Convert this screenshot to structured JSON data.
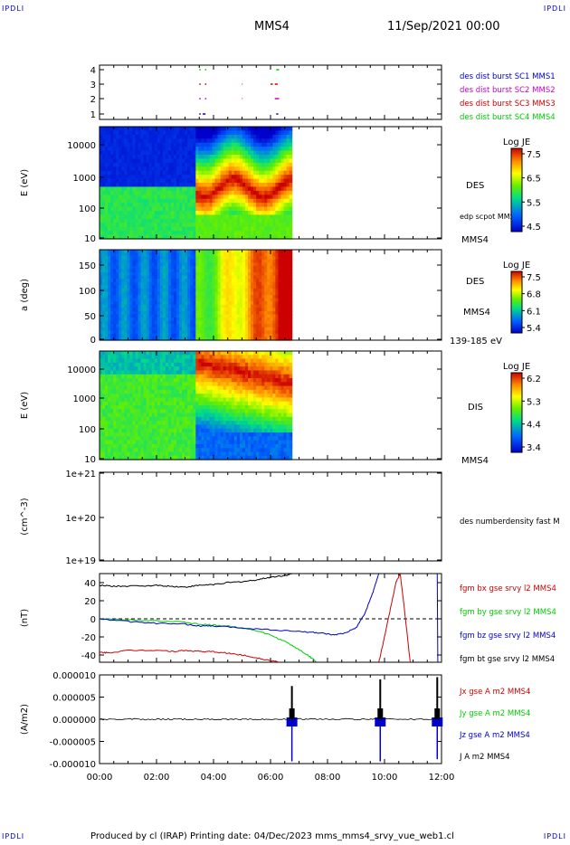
{
  "header": {
    "corner_left_top": "IPDLI",
    "corner_right_top": "IPDLI",
    "corner_left_bottom": "IPDLI",
    "corner_right_bottom": "IPDLI",
    "spacecraft": "MMS4",
    "date": "11/Sep/2021 00:00"
  },
  "footer": {
    "text": "Produced by cl (IRAP)   Printing date: 04/Dec/2023   mms_mms4_srvy_vue_web1.cl"
  },
  "x_axis": {
    "range_hours": [
      0,
      12
    ],
    "ticks": [
      {
        "h": 0,
        "label": "00:00"
      },
      {
        "h": 2,
        "label": "02:00"
      },
      {
        "h": 4,
        "label": "04:00"
      },
      {
        "h": 6,
        "label": "06:00"
      },
      {
        "h": 8,
        "label": "08:00"
      },
      {
        "h": 10,
        "label": "10:00"
      },
      {
        "h": 12,
        "label": "12:00"
      }
    ]
  },
  "colors": {
    "blue": "#0000cc",
    "magenta": "#cc00cc",
    "red": "#cc0000",
    "green": "#00cc00",
    "black": "#000000"
  },
  "chart_data": [
    {
      "id": "burst",
      "type": "scatter",
      "y_ticks": [
        "4",
        "3",
        "2",
        "1"
      ],
      "legend": [
        {
          "label": "des dist burst SC1 MMS1",
          "color": "#0000cc"
        },
        {
          "label": "des dist burst SC2 MMS2",
          "color": "#cc00cc"
        },
        {
          "label": "des dist burst SC3 MMS3",
          "color": "#cc0000"
        },
        {
          "label": "des dist burst SC4 MMS4",
          "color": "#00cc00"
        }
      ],
      "segments": [
        {
          "sc": 4,
          "color": "#00cc00",
          "t": [
            [
              3.5,
              3.55
            ],
            [
              3.7,
              3.75
            ],
            [
              6.2,
              6.3
            ]
          ]
        },
        {
          "sc": 3,
          "color": "#cc0000",
          "t": [
            [
              3.5,
              3.55
            ],
            [
              3.7,
              3.75
            ],
            [
              5.0,
              5.02
            ],
            [
              6.0,
              6.08
            ],
            [
              6.15,
              6.25
            ]
          ]
        },
        {
          "sc": 2,
          "color": "#cc00cc",
          "t": [
            [
              3.5,
              3.55
            ],
            [
              3.7,
              3.75
            ],
            [
              5.0,
              5.02
            ],
            [
              6.15,
              6.3
            ]
          ]
        },
        {
          "sc": 1,
          "color": "#0000cc",
          "t": [
            [
              3.5,
              3.55
            ],
            [
              3.62,
              3.72
            ],
            [
              6.2,
              6.27
            ]
          ]
        }
      ]
    },
    {
      "id": "des_energy",
      "type": "heatmap",
      "ylabel": "E (eV)",
      "y_ticks": [
        "10000",
        "1000",
        "100",
        "10"
      ],
      "ylim": [
        10,
        30000
      ],
      "data_end_hour": 6.75,
      "right_labels": [
        "DES",
        "edp scpot MMS4",
        "MMS4"
      ],
      "colorbar": {
        "title": "Log JE",
        "ticks": [
          "7.5",
          "6.5",
          "5.5",
          "4.5"
        ],
        "range": [
          4.5,
          7.5
        ]
      }
    },
    {
      "id": "des_pitch",
      "type": "heatmap",
      "ylabel": "a (deg)",
      "y_ticks": [
        "150",
        "100",
        "50",
        "0"
      ],
      "ylim": [
        0,
        180
      ],
      "data_end_hour": 6.75,
      "right_labels": [
        "DES",
        "MMS4",
        "139-185 eV"
      ],
      "colorbar": {
        "title": "Log JE",
        "ticks": [
          "7.5",
          "6.8",
          "6.1",
          "5.4"
        ],
        "range": [
          5.4,
          7.5
        ]
      }
    },
    {
      "id": "dis_energy",
      "type": "heatmap",
      "ylabel": "E (eV)",
      "y_ticks": [
        "10000",
        "1000",
        "100",
        "10"
      ],
      "ylim": [
        10,
        30000
      ],
      "data_end_hour": 6.75,
      "right_labels": [
        "DIS",
        "MMS4"
      ],
      "colorbar": {
        "title": "Log JE",
        "ticks": [
          "6.2",
          "5.3",
          "4.4",
          "3.4"
        ],
        "range": [
          3.4,
          6.2
        ]
      }
    },
    {
      "id": "density",
      "type": "line",
      "ylabel": "(cm^-3)",
      "y_ticks": [
        "1e+21",
        "1e+20",
        "1e+19"
      ],
      "legend": [
        {
          "label": "des numberdensity fast M",
          "color": "#000000"
        }
      ]
    },
    {
      "id": "fgm",
      "type": "line",
      "ylabel": "(nT)",
      "y_ticks": [
        "40",
        "20",
        "0",
        "-20",
        "-40"
      ],
      "ylim": [
        -48,
        50
      ],
      "legend": [
        {
          "label": "fgm bx gse srvy l2 MMS4",
          "color": "#cc0000"
        },
        {
          "label": "fgm by gse srvy l2 MMS4",
          "color": "#00cc00"
        },
        {
          "label": "fgm bz gse srvy l2 MMS4",
          "color": "#0000cc"
        },
        {
          "label": "fgm bt gse srvy l2 MMS4",
          "color": "#000000"
        }
      ],
      "series": [
        {
          "name": "fgm bt gse srvy l2 MMS4",
          "color": "#000000",
          "x": [
            0,
            0.5,
            1,
            2,
            2.5,
            3,
            3.5,
            4,
            4.5,
            5,
            5.5,
            6,
            6.5,
            6.8
          ],
          "y": [
            37,
            36,
            36,
            37,
            36,
            35,
            37,
            38,
            40,
            41,
            43,
            46,
            48,
            50
          ]
        },
        {
          "name": "fgm bx gse srvy l2 MMS4",
          "color": "#cc0000",
          "x": [
            0,
            0.3,
            1,
            2,
            2.6,
            3,
            3.5,
            4,
            4.5,
            5,
            5.5,
            6,
            6.3
          ],
          "y": [
            -37,
            -37.5,
            -35,
            -34.5,
            -36,
            -35,
            -36,
            -36.5,
            -38,
            -40,
            -43,
            -46,
            -48
          ]
        },
        {
          "name": "fgm bx gse srvy l2 MMS4 (10h)",
          "color": "#cc0000",
          "x": [
            9.8,
            10.0,
            10.2,
            10.4,
            10.55,
            10.7,
            10.9
          ],
          "y": [
            -48,
            -20,
            10,
            40,
            50,
            10,
            -48
          ]
        },
        {
          "name": "fgm by gse srvy l2 MMS4",
          "color": "#00cc00",
          "x": [
            0,
            1,
            2,
            3,
            3.5,
            4,
            4.5,
            5,
            5.5,
            6,
            6.5,
            7,
            7.3,
            7.6
          ],
          "y": [
            0,
            -1,
            -2,
            -4,
            -6,
            -7,
            -8,
            -10,
            -13,
            -18,
            -25,
            -34,
            -40,
            -47
          ]
        },
        {
          "name": "fgm bz gse srvy l2 MMS4",
          "color": "#0000cc",
          "x": [
            0,
            1,
            2,
            3,
            3.5,
            4,
            5,
            6,
            7,
            7.5,
            7.8,
            8.2,
            8.6,
            9,
            9.3,
            9.6,
            9.8
          ],
          "y": [
            0,
            -3,
            -5,
            -6,
            -8,
            -8,
            -10,
            -12,
            -14,
            -15,
            -16,
            -18,
            -16,
            -10,
            5,
            30,
            50
          ]
        }
      ]
    },
    {
      "id": "current",
      "type": "line",
      "ylabel": "(A/m2)",
      "y_ticks": [
        "0.000010",
        "0.000005",
        "0.000000",
        "-0.000005",
        "-0.000010"
      ],
      "ylim": [
        -1e-05,
        1e-05
      ],
      "legend": [
        {
          "label": "Jx gse A m2 MMS4",
          "color": "#cc0000"
        },
        {
          "label": "Jy gse A m2 MMS4",
          "color": "#00cc00"
        },
        {
          "label": "Jz gse A m2 MMS4",
          "color": "#0000cc"
        },
        {
          "label": "J A m2 MMS4",
          "color": "#000000"
        }
      ],
      "spikes": [
        {
          "t": 6.75,
          "pos": 7.5e-06,
          "neg": -9.5e-06
        },
        {
          "t": 9.85,
          "pos": 9e-06,
          "neg": -9.5e-06
        },
        {
          "t": 11.85,
          "pos": 9.5e-06,
          "neg": -9e-06
        }
      ]
    }
  ]
}
